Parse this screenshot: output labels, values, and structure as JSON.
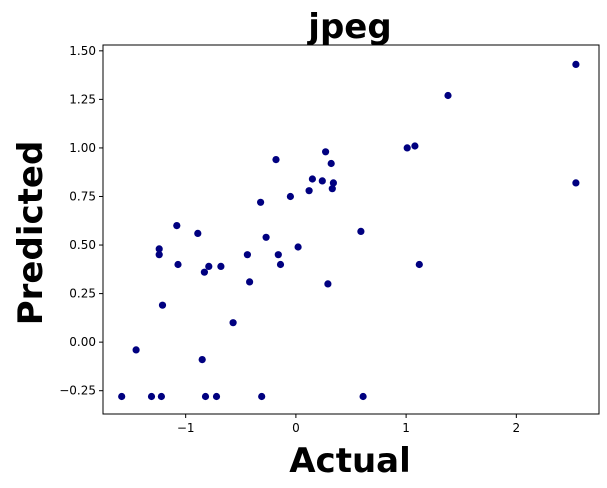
{
  "chart_data": {
    "type": "scatter",
    "title": "jpeg",
    "xlabel": "Actual",
    "ylabel": "Predicted",
    "xlim": [
      -1.75,
      2.75
    ],
    "ylim": [
      -0.37,
      1.53
    ],
    "xticks": [
      -1,
      0,
      1,
      2
    ],
    "xtick_labels": [
      "−1",
      "0",
      "1",
      "2"
    ],
    "yticks": [
      -0.25,
      0.0,
      0.25,
      0.5,
      0.75,
      1.0,
      1.25,
      1.5
    ],
    "ytick_labels": [
      "−0.25",
      "0.00",
      "0.25",
      "0.50",
      "0.75",
      "1.00",
      "1.25",
      "1.50"
    ],
    "grid": false,
    "marker_color": "#000080",
    "series": [
      {
        "x": [
          -1.58,
          -1.45,
          -1.31,
          -1.24,
          -1.24,
          -1.22,
          -1.21,
          -1.08,
          -1.07,
          -0.89,
          -0.85,
          -0.83,
          -0.82,
          -0.79,
          -0.72,
          -0.68,
          -0.57,
          -0.44,
          -0.42,
          -0.32,
          -0.31,
          -0.27,
          -0.18,
          -0.16,
          -0.14,
          -0.05,
          0.02,
          0.12,
          0.15,
          0.24,
          0.27,
          0.29,
          0.32,
          0.33,
          0.34,
          0.59,
          0.61,
          1.01,
          1.08,
          1.12,
          1.38,
          2.54,
          2.54
        ],
        "y": [
          -0.28,
          -0.04,
          -0.28,
          0.45,
          0.48,
          -0.28,
          0.19,
          0.6,
          0.4,
          0.56,
          -0.09,
          0.36,
          -0.28,
          0.39,
          -0.28,
          0.39,
          0.1,
          0.45,
          0.31,
          0.72,
          -0.28,
          0.54,
          0.94,
          0.45,
          0.4,
          0.75,
          0.49,
          0.78,
          0.84,
          0.83,
          0.98,
          0.3,
          0.92,
          0.79,
          0.82,
          0.57,
          -0.28,
          1.0,
          1.01,
          0.4,
          1.27,
          1.43,
          0.82
        ]
      }
    ]
  }
}
